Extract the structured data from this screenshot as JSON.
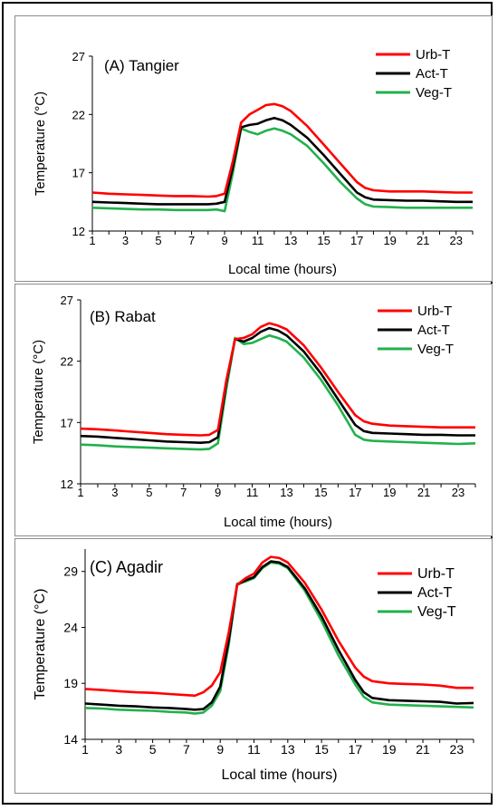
{
  "chart_data": [
    {
      "type": "line",
      "panel_label": "(A) Tangier",
      "xlabel": "Local time (hours)",
      "ylabel": "Temperature (°C)",
      "ylim": [
        12,
        27
      ],
      "yticks": [
        12,
        17,
        22,
        27
      ],
      "xticks": [
        1,
        3,
        5,
        7,
        9,
        11,
        13,
        15,
        17,
        19,
        21,
        23
      ],
      "xlim": [
        1,
        24
      ],
      "grid": false,
      "legend_position": "top-right",
      "x": [
        1,
        2,
        3,
        4,
        5,
        6,
        7,
        8,
        8.5,
        9,
        9.5,
        10,
        10.5,
        11,
        11.5,
        12,
        12.5,
        13,
        14,
        15,
        16,
        17,
        17.5,
        18,
        19,
        20,
        21,
        22,
        23,
        24
      ],
      "series": [
        {
          "name": "Urb-T",
          "color": "#ff0000",
          "values": [
            15.3,
            15.2,
            15.15,
            15.1,
            15.05,
            15.0,
            15.0,
            14.95,
            15.0,
            15.2,
            18.0,
            21.3,
            22.0,
            22.4,
            22.8,
            22.9,
            22.7,
            22.3,
            21.0,
            19.4,
            17.8,
            16.2,
            15.7,
            15.5,
            15.4,
            15.4,
            15.4,
            15.35,
            15.3,
            15.3
          ]
        },
        {
          "name": "Act-T",
          "color": "#000000",
          "values": [
            14.5,
            14.45,
            14.4,
            14.35,
            14.3,
            14.3,
            14.3,
            14.3,
            14.35,
            14.5,
            17.5,
            20.9,
            21.1,
            21.2,
            21.5,
            21.7,
            21.5,
            21.1,
            20.0,
            18.5,
            16.9,
            15.3,
            14.9,
            14.7,
            14.65,
            14.6,
            14.6,
            14.55,
            14.5,
            14.5
          ]
        },
        {
          "name": "Veg-T",
          "color": "#22b14c",
          "values": [
            14.0,
            13.95,
            13.9,
            13.85,
            13.85,
            13.8,
            13.8,
            13.8,
            13.85,
            13.7,
            17.0,
            20.8,
            20.5,
            20.3,
            20.6,
            20.8,
            20.6,
            20.3,
            19.3,
            17.8,
            16.2,
            14.8,
            14.3,
            14.1,
            14.05,
            14.0,
            14.0,
            14.0,
            14.0,
            14.0
          ]
        }
      ]
    },
    {
      "type": "line",
      "panel_label": "(B) Rabat",
      "xlabel": "Local time (hours)",
      "ylabel": "Temperature (°C)",
      "ylim": [
        12,
        27
      ],
      "yticks": [
        12,
        17,
        22,
        27
      ],
      "xticks": [
        1,
        3,
        5,
        7,
        9,
        11,
        13,
        15,
        17,
        19,
        21,
        23
      ],
      "xlim": [
        1,
        24
      ],
      "grid": false,
      "legend_position": "top-right",
      "x": [
        1,
        2,
        3,
        4,
        5,
        6,
        7,
        8,
        8.5,
        9,
        9.5,
        10,
        10.5,
        11,
        11.5,
        12,
        12.5,
        13,
        14,
        15,
        16,
        17,
        17.5,
        18,
        19,
        20,
        21,
        22,
        23,
        24
      ],
      "series": [
        {
          "name": "Urb-T",
          "color": "#ff0000",
          "values": [
            16.5,
            16.45,
            16.35,
            16.25,
            16.15,
            16.05,
            16.0,
            15.95,
            16.0,
            16.4,
            20.5,
            23.8,
            23.9,
            24.2,
            24.8,
            25.1,
            24.9,
            24.6,
            23.3,
            21.5,
            19.5,
            17.6,
            17.1,
            16.9,
            16.75,
            16.7,
            16.65,
            16.6,
            16.6,
            16.6
          ]
        },
        {
          "name": "Act-T",
          "color": "#000000",
          "values": [
            15.9,
            15.85,
            15.75,
            15.65,
            15.55,
            15.45,
            15.4,
            15.35,
            15.4,
            15.8,
            20.3,
            23.8,
            23.6,
            23.9,
            24.4,
            24.7,
            24.5,
            24.1,
            22.8,
            21.0,
            18.9,
            16.8,
            16.3,
            16.15,
            16.1,
            16.05,
            16.0,
            16.0,
            15.95,
            15.95
          ]
        },
        {
          "name": "Veg-T",
          "color": "#22b14c",
          "values": [
            15.2,
            15.15,
            15.05,
            15.0,
            14.95,
            14.9,
            14.85,
            14.8,
            14.85,
            15.3,
            19.8,
            23.9,
            23.4,
            23.5,
            23.8,
            24.1,
            23.9,
            23.6,
            22.3,
            20.5,
            18.4,
            16.0,
            15.6,
            15.5,
            15.45,
            15.4,
            15.35,
            15.3,
            15.25,
            15.3
          ]
        }
      ]
    },
    {
      "type": "line",
      "panel_label": "(C) Agadir",
      "xlabel": "Local time (hours)",
      "ylabel": "Temperature (°C)",
      "ylim": [
        14,
        31
      ],
      "yticks": [
        14,
        19,
        24,
        29
      ],
      "xticks": [
        1,
        3,
        5,
        7,
        9,
        11,
        13,
        15,
        17,
        19,
        21,
        23
      ],
      "xlim": [
        1,
        24
      ],
      "grid": false,
      "legend_position": "top-right",
      "x": [
        1,
        2,
        3,
        4,
        5,
        6,
        7,
        7.5,
        8,
        8.5,
        9,
        9.5,
        10,
        10.5,
        11,
        11.5,
        12,
        12.5,
        13,
        14,
        15,
        16,
        17,
        17.5,
        18,
        19,
        20,
        21,
        22,
        23,
        24
      ],
      "series": [
        {
          "name": "Urb-T",
          "color": "#ff0000",
          "values": [
            18.5,
            18.4,
            18.3,
            18.2,
            18.15,
            18.05,
            17.95,
            17.9,
            18.2,
            18.8,
            20.0,
            23.5,
            27.8,
            28.4,
            28.8,
            29.8,
            30.3,
            30.2,
            29.8,
            28.0,
            25.6,
            22.8,
            20.4,
            19.6,
            19.2,
            19.0,
            18.95,
            18.9,
            18.8,
            18.6,
            18.6
          ]
        },
        {
          "name": "Act-T",
          "color": "#000000",
          "values": [
            17.2,
            17.1,
            17.0,
            16.95,
            16.85,
            16.8,
            16.7,
            16.65,
            16.7,
            17.3,
            18.7,
            22.8,
            27.8,
            28.2,
            28.5,
            29.4,
            29.9,
            29.8,
            29.4,
            27.5,
            25.0,
            22.0,
            19.3,
            18.2,
            17.7,
            17.5,
            17.45,
            17.4,
            17.35,
            17.2,
            17.25
          ]
        },
        {
          "name": "Veg-T",
          "color": "#22b14c",
          "values": [
            16.8,
            16.75,
            16.65,
            16.6,
            16.55,
            16.45,
            16.4,
            16.3,
            16.4,
            17.0,
            18.3,
            22.4,
            27.9,
            28.1,
            28.4,
            29.3,
            29.8,
            29.7,
            29.3,
            27.3,
            24.6,
            21.5,
            18.9,
            17.8,
            17.3,
            17.1,
            17.05,
            17.0,
            16.95,
            16.9,
            16.85
          ]
        }
      ]
    }
  ]
}
